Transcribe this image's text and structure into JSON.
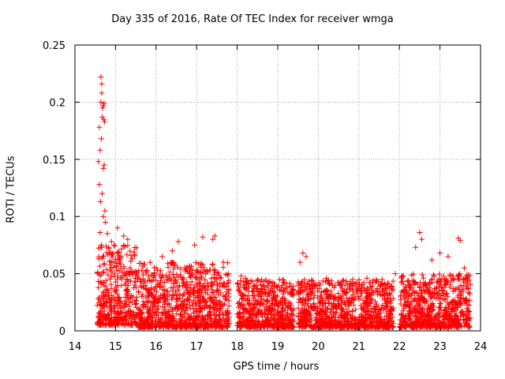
{
  "chart_data": {
    "type": "scatter",
    "title": "Day 335 of 2016, Rate Of TEC Index for receiver wmga",
    "xlabel": "GPS time / hours",
    "ylabel": "ROTI / TECUs",
    "xlim": [
      14,
      24
    ],
    "ylim": [
      0,
      0.25
    ],
    "xticks": [
      14,
      15,
      16,
      17,
      18,
      19,
      20,
      21,
      22,
      23,
      24
    ],
    "yticks": [
      0,
      0.05,
      0.1,
      0.15,
      0.2,
      0.25
    ],
    "xtick_labels": [
      "14",
      "15",
      "16",
      "17",
      "18",
      "19",
      "20",
      "21",
      "22",
      "23",
      "24"
    ],
    "ytick_labels": [
      "0",
      "0.05",
      "0.1",
      "0.15",
      "0.2",
      "0.25"
    ],
    "grid": true,
    "marker": "+",
    "color": "#ff0000",
    "series": [
      {
        "name": "ROTI",
        "points": [
          [
            14.58,
            0.148
          ],
          [
            14.6,
            0.128
          ],
          [
            14.6,
            0.178
          ],
          [
            14.62,
            0.158
          ],
          [
            14.63,
            0.113
          ],
          [
            14.64,
            0.2
          ],
          [
            14.64,
            0.222
          ],
          [
            14.65,
            0.168
          ],
          [
            14.66,
            0.216
          ],
          [
            14.66,
            0.208
          ],
          [
            14.67,
            0.187
          ],
          [
            14.67,
            0.12
          ],
          [
            14.68,
            0.195
          ],
          [
            14.7,
            0.142
          ],
          [
            14.7,
            0.197
          ],
          [
            14.71,
            0.185
          ],
          [
            14.72,
            0.199
          ],
          [
            14.73,
            0.183
          ],
          [
            14.72,
            0.145
          ],
          [
            14.74,
            0.105
          ],
          [
            14.75,
            0.095
          ],
          [
            14.62,
            0.086
          ],
          [
            14.65,
            0.075
          ],
          [
            14.7,
            0.1
          ],
          [
            14.8,
            0.085
          ],
          [
            14.9,
            0.078
          ],
          [
            15.05,
            0.09
          ],
          [
            15.2,
            0.083
          ],
          [
            15.3,
            0.08
          ],
          [
            15.5,
            0.052
          ],
          [
            16.15,
            0.065
          ],
          [
            16.4,
            0.07
          ],
          [
            16.55,
            0.078
          ],
          [
            16.95,
            0.075
          ],
          [
            17.15,
            0.082
          ],
          [
            17.4,
            0.08
          ],
          [
            17.45,
            0.083
          ],
          [
            18.1,
            0.048
          ],
          [
            18.2,
            0.046
          ],
          [
            19.55,
            0.06
          ],
          [
            19.62,
            0.068
          ],
          [
            19.7,
            0.065
          ],
          [
            20.2,
            0.046
          ],
          [
            20.85,
            0.045
          ],
          [
            21.2,
            0.046
          ],
          [
            21.9,
            0.05
          ],
          [
            22.4,
            0.073
          ],
          [
            22.5,
            0.086
          ],
          [
            22.55,
            0.08
          ],
          [
            22.8,
            0.062
          ],
          [
            23.0,
            0.068
          ],
          [
            23.2,
            0.065
          ],
          [
            23.45,
            0.081
          ],
          [
            23.5,
            0.079
          ],
          [
            23.6,
            0.055
          ]
        ],
        "segments": [
          {
            "x": [
              14.55,
              15.55
            ],
            "y": [
              0.005,
              0.075
            ]
          },
          {
            "x": [
              15.55,
              17.8
            ],
            "y": [
              0.003,
              0.06
            ]
          },
          {
            "x": [
              18.0,
              19.4
            ],
            "y": [
              0.003,
              0.045
            ]
          },
          {
            "x": [
              19.5,
              21.85
            ],
            "y": [
              0.003,
              0.045
            ]
          },
          {
            "x": [
              22.0,
              23.75
            ],
            "y": [
              0.003,
              0.05
            ]
          }
        ]
      }
    ]
  }
}
